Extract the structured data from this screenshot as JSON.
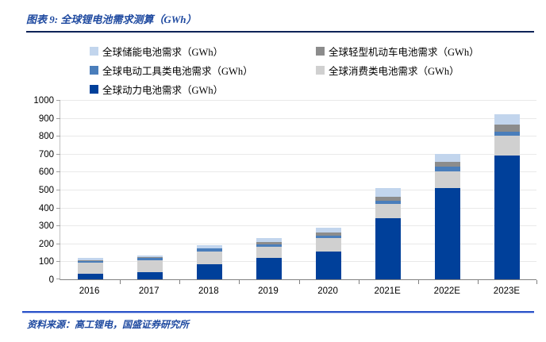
{
  "header": {
    "title": "图表 9:  全球锂电池需求测算（GWh）"
  },
  "legend": {
    "items": [
      {
        "label": "全球储能电池需求（GWh）",
        "color": "#c2d5ed",
        "col": 0,
        "row": 0
      },
      {
        "label": "全球轻型机动车电池需求（GWh）",
        "color": "#8c8c8c",
        "col": 1,
        "row": 0
      },
      {
        "label": "全球电动工具类电池需求（GWh）",
        "color": "#4a7ebb",
        "col": 0,
        "row": 1
      },
      {
        "label": "全球消费类电池需求（GWh）",
        "color": "#d0d0d0",
        "col": 1,
        "row": 1
      },
      {
        "label": "全球动力电池需求（GWh）",
        "color": "#00409a",
        "col": 0,
        "row": 2
      }
    ]
  },
  "chart_data": {
    "type": "bar",
    "stacked": true,
    "title": "全球锂电池需求测算（GWh）",
    "xlabel": "",
    "ylabel": "",
    "ylim": [
      0,
      1000
    ],
    "yticks": [
      0,
      100,
      200,
      300,
      400,
      500,
      600,
      700,
      800,
      900,
      1000
    ],
    "grid": true,
    "legend_position": "top",
    "categories": [
      "2016",
      "2017",
      "2018",
      "2019",
      "2020",
      "2021E",
      "2022E",
      "2023E"
    ],
    "series": [
      {
        "name": "全球动力电池需求（GWh）",
        "color": "#00409a",
        "values": [
          30,
          41,
          86,
          120,
          153,
          342,
          508,
          690
        ]
      },
      {
        "name": "全球消费类电池需求（GWh）",
        "color": "#d0d0d0",
        "values": [
          62,
          67,
          71,
          62,
          77,
          80,
          96,
          110
        ]
      },
      {
        "name": "全球电动工具类电池需求（GWh）",
        "color": "#4a7ebb",
        "values": [
          12,
          13,
          15,
          12,
          15,
          18,
          23,
          25
        ]
      },
      {
        "name": "全球轻型机动车电池需求（GWh）",
        "color": "#8c8c8c",
        "values": [
          2,
          2,
          3,
          12,
          15,
          22,
          28,
          36
        ]
      },
      {
        "name": "全球储能电池需求（GWh）",
        "color": "#c2d5ed",
        "values": [
          14,
          12,
          15,
          26,
          29,
          45,
          45,
          60
        ]
      }
    ],
    "totals": [
      120,
      135,
      190,
      232,
      289,
      507,
      700,
      921
    ]
  },
  "footer": {
    "source": "资料来源：高工锂电，国盛证券研究所"
  }
}
